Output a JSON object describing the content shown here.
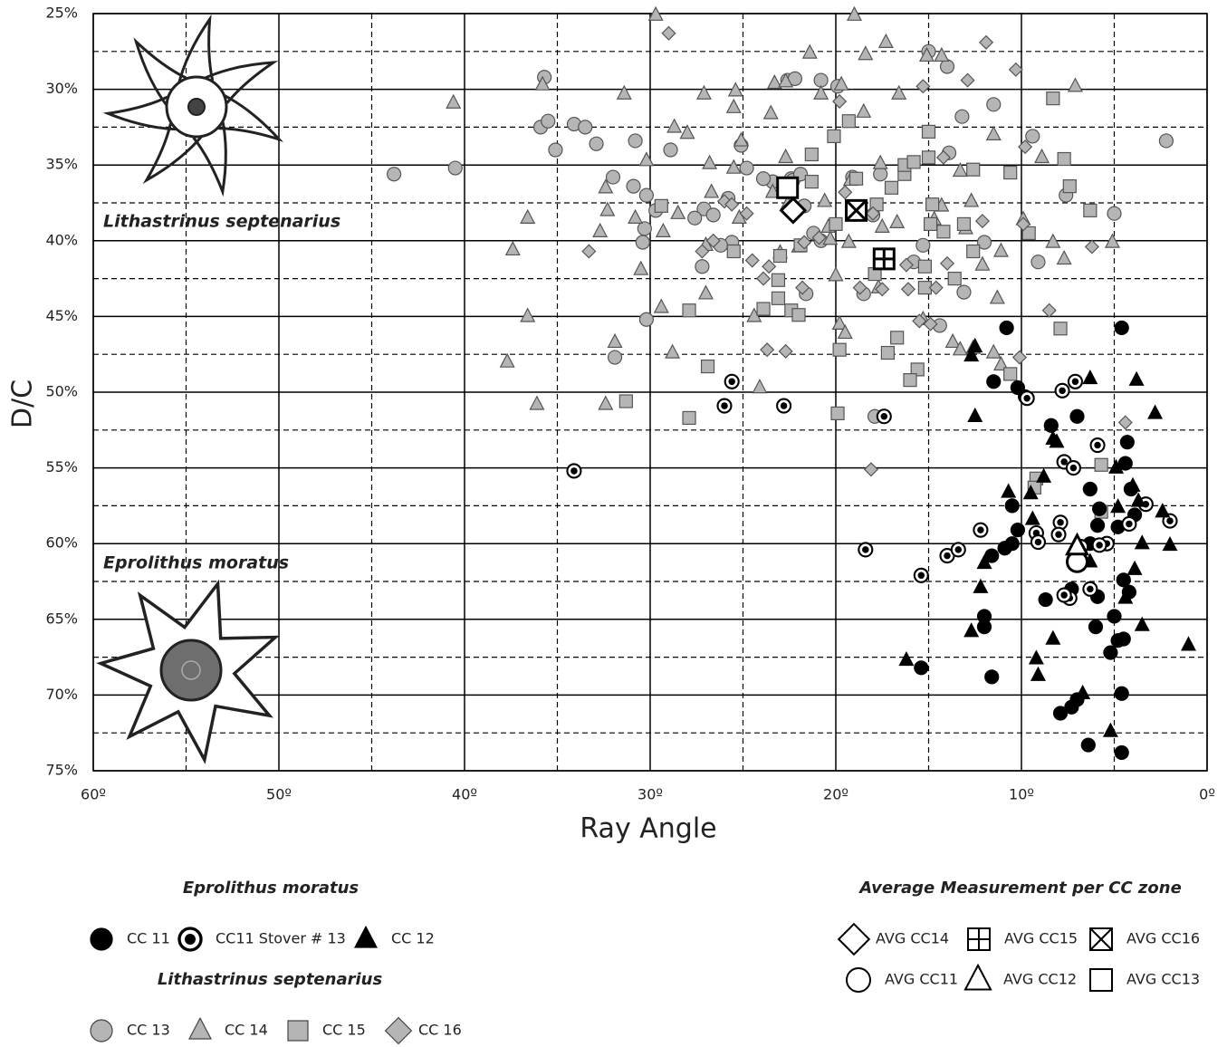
{
  "chart_data": {
    "type": "scatter",
    "xlabel": "Ray Angle",
    "ylabel": "D/C",
    "xlim": [
      60,
      0
    ],
    "ylim": [
      25,
      75
    ],
    "xticks": [
      {
        "value": 60,
        "label": "60º"
      },
      {
        "value": 50,
        "label": "50º"
      },
      {
        "value": 40,
        "label": "40º"
      },
      {
        "value": 30,
        "label": "30º"
      },
      {
        "value": 20,
        "label": "20º"
      },
      {
        "value": 10,
        "label": "10º"
      },
      {
        "value": 0,
        "label": "0º"
      }
    ],
    "yticks": [
      {
        "value": 25,
        "label": "25%"
      },
      {
        "value": 30,
        "label": "30%"
      },
      {
        "value": 35,
        "label": "35%"
      },
      {
        "value": 40,
        "label": "40%"
      },
      {
        "value": 45,
        "label": "45%"
      },
      {
        "value": 50,
        "label": "50%"
      },
      {
        "value": 55,
        "label": "55%"
      },
      {
        "value": 60,
        "label": "60%"
      },
      {
        "value": 65,
        "label": "65%"
      },
      {
        "value": 70,
        "label": "70%"
      },
      {
        "value": 75,
        "label": "75%"
      }
    ],
    "x_minor_grid": [
      55,
      45,
      35,
      25,
      15,
      5
    ],
    "y_minor_grid": [
      27.5,
      32.5,
      37.5,
      42.5,
      47.5,
      52.5,
      57.5,
      62.5,
      67.5,
      72.5
    ],
    "grid": true,
    "annotations": [
      "Lithastrinus septenarius",
      "Eprolithus moratus"
    ],
    "legend_titles": [
      "Eprolithus moratus",
      "Lithastrinus septenarius",
      "Average Measurement per CC zone"
    ],
    "series": [
      {
        "name": "CC 11",
        "marker": "circle",
        "color": "#000000",
        "edgecolor": "#000000",
        "x": [
          10.8,
          4.6,
          11.5,
          10.2,
          9.8,
          8.4,
          7.0,
          4.3,
          4.4,
          4.1,
          6.3,
          10.5,
          10.2,
          5.8,
          5.9,
          4.8,
          3.9,
          6.3,
          10.5,
          10.9,
          11.6,
          8.7,
          7.3,
          5.9,
          5.0,
          4.5,
          4.8,
          6.0,
          7.0,
          7.3,
          7.9,
          6.4,
          4.6,
          4.6,
          11.6,
          12.0,
          12.0,
          15.4,
          5.2,
          4.2,
          4.5
        ],
        "y": [
          45.75,
          45.75,
          49.3,
          49.7,
          50.3,
          52.2,
          51.6,
          53.3,
          54.7,
          56.4,
          56.4,
          57.5,
          59.1,
          57.7,
          58.8,
          58.9,
          58.1,
          60.0,
          60.0,
          60.3,
          60.8,
          63.7,
          63.0,
          63.5,
          64.8,
          66.3,
          66.4,
          65.5,
          70.3,
          70.8,
          71.2,
          73.3,
          73.8,
          69.9,
          68.8,
          64.8,
          65.5,
          68.2,
          67.2,
          63.2,
          62.4
        ]
      },
      {
        "name": "CC11 Stover # 13",
        "marker": "ring",
        "color": "#000000",
        "edgecolor": "#000000",
        "x": [
          25.6,
          26.0,
          22.8,
          17.4,
          34.1,
          18.4,
          15.4,
          14.0,
          13.4,
          12.2,
          9.7,
          7.8,
          7.1,
          5.9,
          7.7,
          7.2,
          9.2,
          7.9,
          8.0,
          3.3,
          2.0,
          5.4,
          5.8,
          7.4,
          6.3,
          7.7,
          4.2,
          6.8,
          9.1
        ],
        "y": [
          49.3,
          50.9,
          50.9,
          51.6,
          55.2,
          60.4,
          62.1,
          60.8,
          60.4,
          59.1,
          50.4,
          49.9,
          49.3,
          53.5,
          54.6,
          55.0,
          59.3,
          58.6,
          59.4,
          57.4,
          58.5,
          60.0,
          60.1,
          63.6,
          63.0,
          63.4,
          58.7,
          60.2,
          59.9
        ]
      },
      {
        "name": "CC 12",
        "marker": "triangle",
        "color": "#000000",
        "edgecolor": "#000000",
        "x": [
          16.2,
          12.5,
          12.5,
          12.7,
          6.3,
          3.8,
          2.8,
          10.7,
          9.5,
          9.4,
          8.8,
          8.3,
          8.1,
          4.9,
          4.0,
          3.7,
          2.4,
          3.5,
          12.0,
          12.2,
          12.7,
          9.2,
          9.1,
          8.3,
          4.8,
          3.9,
          6.3,
          4.4,
          3.5,
          1.0,
          6.7,
          5.2,
          2.0
        ],
        "y": [
          67.7,
          51.6,
          47.0,
          47.6,
          49.1,
          49.2,
          51.4,
          56.6,
          56.7,
          58.4,
          55.6,
          53.1,
          53.3,
          55.0,
          56.2,
          57.2,
          57.9,
          60.0,
          61.3,
          62.9,
          65.8,
          67.6,
          68.7,
          66.3,
          57.6,
          61.7,
          61.2,
          63.6,
          65.4,
          66.7,
          69.9,
          72.4,
          60.1
        ]
      },
      {
        "name": "CC 13",
        "marker": "circle",
        "color": "#b5b5b5",
        "edgecolor": "#555555",
        "x": [
          35.7,
          35.9,
          35.5,
          35.1,
          34.1,
          33.5,
          32.9,
          30.8,
          30.9,
          30.2,
          30.3,
          30.4,
          32.0,
          31.9,
          30.2,
          28.9,
          27.1,
          26.6,
          27.6,
          27.2,
          25.8,
          25.6,
          25.1,
          24.8,
          23.4,
          23.9,
          22.4,
          22.6,
          22.2,
          22.3,
          21.9,
          21.7,
          20.8,
          19.9,
          20.8,
          19.1,
          21.2,
          18.5,
          18.0,
          17.6,
          17.5,
          15.0,
          14.0,
          13.2,
          13.9,
          13.1,
          12.0,
          11.5,
          9.4,
          9.1,
          7.6,
          5.0,
          2.2,
          17.9,
          14.4,
          15.3,
          15.8,
          26.2,
          21.6,
          43.8,
          40.5,
          29.7
        ],
        "y": [
          29.2,
          32.5,
          32.1,
          34.0,
          32.3,
          32.5,
          33.6,
          33.4,
          36.4,
          37.0,
          39.2,
          40.1,
          35.8,
          47.7,
          45.2,
          34.0,
          37.9,
          38.3,
          38.5,
          41.7,
          37.2,
          40.1,
          33.7,
          35.2,
          36.1,
          35.9,
          35.9,
          29.4,
          29.3,
          36.0,
          35.6,
          37.7,
          29.4,
          29.8,
          40.0,
          35.8,
          39.5,
          43.5,
          38.3,
          35.6,
          41.3,
          27.5,
          28.5,
          31.8,
          34.2,
          43.4,
          40.1,
          31.0,
          33.1,
          41.4,
          37.0,
          38.2,
          33.4,
          51.6,
          45.6,
          40.3,
          41.4,
          40.3,
          43.5,
          35.6,
          35.2,
          38.0
        ]
      },
      {
        "name": "CC 14",
        "marker": "triangle",
        "color": "#b5b5b5",
        "edgecolor": "#555555",
        "x": [
          40.6,
          35.8,
          36.6,
          37.4,
          36.6,
          37.7,
          36.1,
          32.4,
          31.9,
          31.4,
          32.7,
          32.3,
          32.4,
          30.8,
          30.5,
          30.2,
          29.7,
          29.4,
          29.3,
          28.5,
          28.7,
          28.0,
          27.1,
          26.8,
          26.7,
          27.0,
          27.0,
          25.4,
          25.5,
          25.5,
          25.1,
          25.2,
          24.1,
          24.4,
          23.5,
          23.3,
          23.4,
          23.0,
          22.7,
          22.6,
          22.7,
          22.0,
          21.4,
          20.8,
          20.6,
          20.4,
          20.3,
          19.3,
          19.2,
          19.7,
          19.8,
          19.5,
          19.0,
          18.4,
          18.5,
          17.7,
          17.3,
          17.6,
          17.5,
          16.7,
          16.6,
          15.1,
          14.3,
          14.3,
          14.7,
          13.3,
          13.0,
          13.7,
          12.7,
          12.1,
          11.5,
          11.3,
          11.1,
          9.9,
          8.9,
          7.1,
          8.3,
          7.7,
          5.1,
          11.5,
          12.6,
          13.3,
          11.1,
          15.3,
          28.8,
          20.0
        ],
        "y": [
          30.9,
          29.7,
          38.5,
          40.6,
          45.0,
          48.0,
          50.8,
          50.8,
          46.7,
          30.3,
          39.4,
          38.0,
          36.5,
          38.5,
          41.9,
          34.7,
          25.1,
          44.4,
          39.4,
          38.2,
          32.5,
          32.9,
          30.3,
          34.9,
          36.8,
          40.3,
          43.5,
          30.1,
          35.2,
          31.2,
          33.4,
          38.5,
          49.7,
          45.0,
          31.6,
          29.6,
          36.8,
          40.8,
          34.5,
          37.6,
          29.5,
          40.4,
          27.6,
          30.3,
          37.4,
          39.1,
          39.9,
          40.1,
          36.0,
          29.7,
          45.5,
          46.1,
          25.1,
          27.7,
          31.5,
          43.1,
          26.9,
          34.9,
          39.1,
          38.8,
          30.3,
          27.8,
          27.8,
          37.7,
          38.6,
          35.4,
          39.2,
          46.7,
          37.4,
          41.6,
          33.0,
          43.8,
          40.7,
          38.6,
          34.5,
          29.8,
          40.1,
          41.2,
          40.1,
          47.4,
          47.1,
          47.2,
          48.2,
          45.2,
          47.4,
          42.3
        ]
      },
      {
        "name": "CC 15",
        "marker": "square",
        "color": "#b5b5b5",
        "edgecolor": "#555555",
        "x": [
          31.3,
          27.9,
          29.4,
          27.9,
          26.9,
          25.5,
          23.1,
          23.1,
          22.4,
          23.0,
          22.0,
          21.9,
          21.3,
          21.3,
          19.9,
          19.8,
          20.0,
          20.1,
          19.3,
          18.9,
          17.9,
          17.8,
          17.2,
          16.7,
          17.0,
          16.3,
          16.3,
          15.8,
          15.0,
          15.0,
          14.8,
          15.2,
          15.2,
          15.6,
          16.0,
          14.9,
          14.2,
          13.6,
          13.1,
          12.6,
          10.6,
          10.6,
          9.6,
          9.2,
          9.3,
          7.9,
          8.3,
          7.7,
          7.4,
          6.3,
          5.7,
          5.7,
          23.9,
          12.6
        ],
        "y": [
          50.6,
          51.7,
          37.7,
          44.6,
          48.3,
          40.7,
          43.8,
          42.6,
          44.6,
          41.0,
          44.9,
          40.3,
          36.1,
          34.3,
          51.4,
          47.2,
          38.9,
          33.1,
          32.1,
          35.9,
          42.2,
          37.6,
          47.4,
          46.4,
          36.5,
          35.6,
          35.0,
          34.8,
          32.8,
          34.5,
          37.6,
          41.7,
          43.1,
          48.5,
          49.2,
          38.9,
          39.4,
          42.5,
          38.9,
          35.3,
          35.5,
          48.8,
          39.5,
          55.7,
          56.3,
          45.8,
          30.6,
          34.6,
          36.4,
          38.0,
          54.8,
          57.9,
          44.5,
          40.7
        ]
      },
      {
        "name": "CC 16",
        "marker": "diamond",
        "color": "#b5b5b5",
        "edgecolor": "#555555",
        "x": [
          29.0,
          33.3,
          27.2,
          26.6,
          26.0,
          25.6,
          24.8,
          24.5,
          23.6,
          23.7,
          22.7,
          21.7,
          21.8,
          20.9,
          19.8,
          19.5,
          18.0,
          18.7,
          17.5,
          16.2,
          16.1,
          15.5,
          15.3,
          14.6,
          14.0,
          14.2,
          12.9,
          12.1,
          11.9,
          10.3,
          9.8,
          9.9,
          10.1,
          8.5,
          6.2,
          4.4,
          18.1,
          23.9,
          14.9
        ],
        "y": [
          26.3,
          40.7,
          40.7,
          40.0,
          37.4,
          37.6,
          38.2,
          41.3,
          41.7,
          47.2,
          47.3,
          40.1,
          43.1,
          39.8,
          30.8,
          36.8,
          38.2,
          43.1,
          43.2,
          41.6,
          43.2,
          45.3,
          29.8,
          43.1,
          41.5,
          34.5,
          29.4,
          38.7,
          26.9,
          28.7,
          33.8,
          38.9,
          47.7,
          44.6,
          40.4,
          52.0,
          55.1,
          42.5,
          45.5
        ]
      },
      {
        "name": "AVG CC14",
        "marker": "diamond",
        "color": "#ffffff",
        "edgecolor": "#000000",
        "x": [
          22.3
        ],
        "y": [
          38.0
        ]
      },
      {
        "name": "AVG CC15",
        "marker": "square-plus",
        "color": "#ffffff",
        "edgecolor": "#000000",
        "x": [
          17.4
        ],
        "y": [
          41.2
        ]
      },
      {
        "name": "AVG CC16",
        "marker": "square-x",
        "color": "#ffffff",
        "edgecolor": "#000000",
        "x": [
          18.9
        ],
        "y": [
          38.0
        ]
      },
      {
        "name": "AVG CC11",
        "marker": "circle",
        "color": "#ffffff",
        "edgecolor": "#000000",
        "x": [
          7.0
        ],
        "y": [
          61.2
        ]
      },
      {
        "name": "AVG CC12",
        "marker": "triangle",
        "color": "#ffffff",
        "edgecolor": "#000000",
        "x": [
          7.0
        ],
        "y": [
          60.2
        ]
      },
      {
        "name": "AVG CC13",
        "marker": "square",
        "color": "#ffffff",
        "edgecolor": "#000000",
        "x": [
          22.6
        ],
        "y": [
          36.5
        ]
      }
    ]
  }
}
